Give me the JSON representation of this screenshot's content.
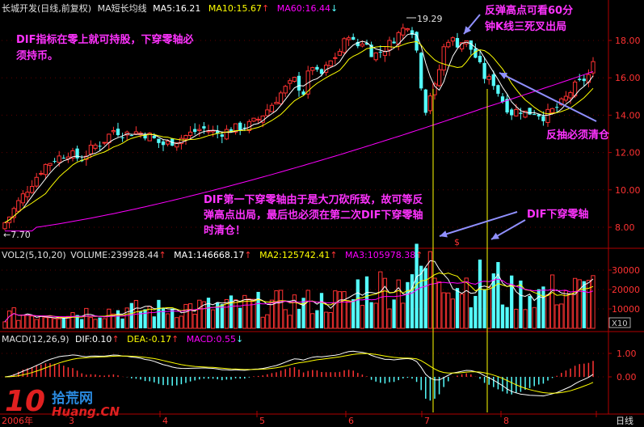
{
  "header": {
    "stock": "长城开发(日线,前复权)",
    "ma_label": "MA短长均线",
    "ma5": "MA5:16.21",
    "ma10": "MA10:15.67",
    "ma60": "MA60:16.44"
  },
  "volume_header": {
    "title": "VOL2(5,10,20)",
    "volume": "VOLUME:239928.44",
    "ma1": "MA1:146668.17",
    "ma2": "MA2:125742.41",
    "ma3": "MA3:105978.38"
  },
  "macd_header": {
    "title": "MACD(12,26,9)",
    "dif": "DIF:0.10",
    "dea": "DEA:-0.17",
    "macd": "MACD:0.55"
  },
  "price_axis": {
    "ticks": [
      "18.00",
      "16.00",
      "14.00",
      "12.00",
      "10.00",
      "8.00"
    ]
  },
  "volume_axis": {
    "ticks": [
      "30000",
      "20000",
      "10000"
    ],
    "unit": "X10"
  },
  "macd_axis": {
    "ticks": [
      "1.00",
      "0.00"
    ]
  },
  "x_axis": {
    "ticks": [
      "3",
      "4",
      "5",
      "6",
      "7",
      "8"
    ],
    "left_label": "2006年",
    "right_label": "日线"
  },
  "markers": {
    "high": "19.29",
    "low": "7.70",
    "dollar": "$"
  },
  "annotations": {
    "top_left": "DIF指标在零上就可持股，下穿零轴必须持币。",
    "top_right_1": "反弹高点可看60分",
    "top_right_2": "钟K线三死叉出局",
    "right_mid": "反抽必须清仓",
    "middle": "DIF第一下穿零轴由于是大刀砍所致，故可等反弹高点出局，最后也必须在第二次DIF下穿零轴时清仓！",
    "dif_cross": "DIF下穿零轴"
  },
  "watermark": {
    "brand": "10",
    "name": "拾荒网",
    "site": "Huang.CN"
  },
  "colors": {
    "up": "#ff3232",
    "down": "#54fcfc",
    "ma5": "#ffffff",
    "ma10": "#ffff00",
    "ma60": "#ff00ff",
    "annotation": "#ff33ff",
    "arrow": "#9090ff"
  },
  "chart_data": {
    "type": "candlestick",
    "price_range": [
      7.5,
      19.6
    ],
    "series_summary": {
      "start_low": 7.7,
      "peak_high": 19.29,
      "last_close": 16.9
    },
    "volume_range": [
      0,
      36000
    ],
    "macd_range": [
      -1.2,
      1.5
    ]
  }
}
